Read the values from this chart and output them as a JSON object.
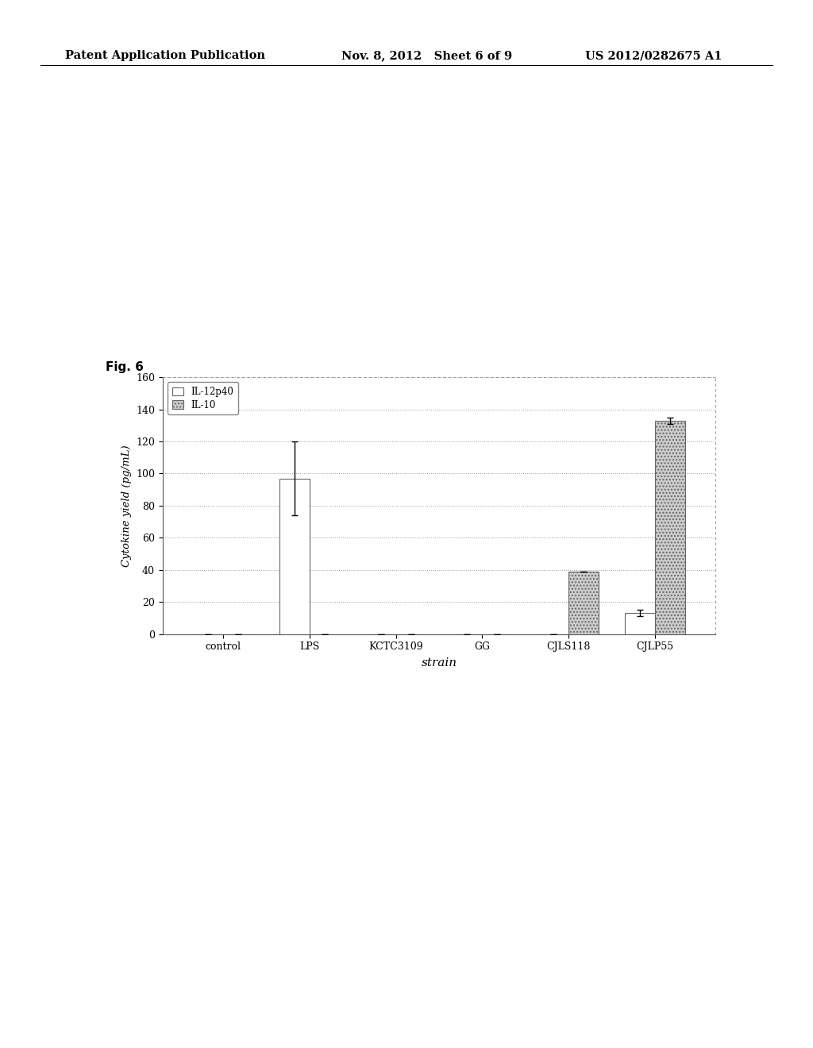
{
  "categories": [
    "control",
    "LPS",
    "KCTC3109",
    "GG",
    "CJLS118",
    "CJLP55"
  ],
  "il12p40_values": [
    0,
    97,
    0,
    0,
    0,
    13
  ],
  "il10_values": [
    0,
    0,
    0,
    0,
    39,
    133
  ],
  "il12p40_errors": [
    0,
    23,
    0,
    0,
    0,
    2
  ],
  "il10_errors": [
    0,
    0,
    0,
    0,
    0,
    2
  ],
  "il12p40_color": "#ffffff",
  "il10_color": "#cccccc",
  "ylabel": "Cytokine yield (pg/mL)",
  "xlabel": "strain",
  "ylim": [
    0,
    160
  ],
  "yticks": [
    0,
    20,
    40,
    60,
    80,
    100,
    120,
    140,
    160
  ],
  "legend_il12p40": "IL-12p40",
  "legend_il10": "IL-10",
  "fig_label": "Fig. 6",
  "bar_width": 0.35,
  "edgecolor": "#666666",
  "background_color": "#ffffff",
  "header_left": "Patent Application Publication",
  "header_mid": "Nov. 8, 2012   Sheet 6 of 9",
  "header_right": "US 2012/0282675 A1",
  "grid_color": "#999999"
}
